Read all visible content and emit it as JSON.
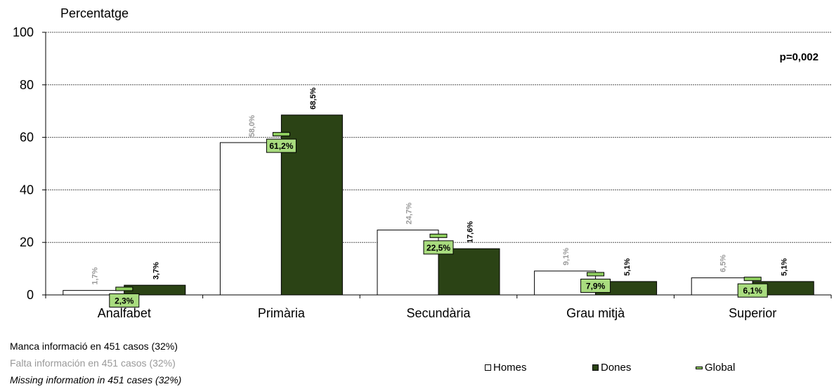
{
  "colors": {
    "homes": "#ffffff",
    "dones": "#2b4315",
    "global": "#8fcf5f",
    "global_label_bg": "#a9dc7f",
    "homes_label": "#9a9a9a",
    "dones_label": "#000000",
    "grid": "#555555"
  },
  "chart_data": {
    "type": "bar",
    "title": "",
    "ylabel": "Percentatge",
    "xlabel": "",
    "ylim": [
      0,
      100
    ],
    "yticks": [
      0,
      20,
      40,
      60,
      80,
      100
    ],
    "grid": true,
    "legend_position": "bottom-right",
    "annotation": "p=0,002",
    "categories": [
      "Analfabet",
      "Primària",
      "Secundària",
      "Grau mitjà",
      "Superior"
    ],
    "series": [
      {
        "name": "Homes",
        "values": [
          1.7,
          58.0,
          24.7,
          9.1,
          6.5
        ],
        "labels": [
          "1,7%",
          "58,0%",
          "24,7%",
          "9,1%",
          "6,5%"
        ]
      },
      {
        "name": "Dones",
        "values": [
          3.7,
          68.5,
          17.6,
          5.1,
          5.1
        ],
        "labels": [
          "3,7%",
          "68,5%",
          "17,6%",
          "5,1%",
          "5,1%"
        ]
      },
      {
        "name": "Global",
        "values": [
          2.3,
          61.2,
          22.5,
          7.9,
          6.1
        ],
        "labels": [
          "2,3%",
          "61,2%",
          "22,5%",
          "7,9%",
          "6,1%"
        ]
      }
    ]
  },
  "notes": {
    "ca": "Manca informació en 451 casos (32%)",
    "es": "Falta información en 451 casos (32%)",
    "en": "Missing information in 451 cases (32%)"
  },
  "legend": {
    "homes": "Homes",
    "dones": "Dones",
    "global": "Global"
  }
}
